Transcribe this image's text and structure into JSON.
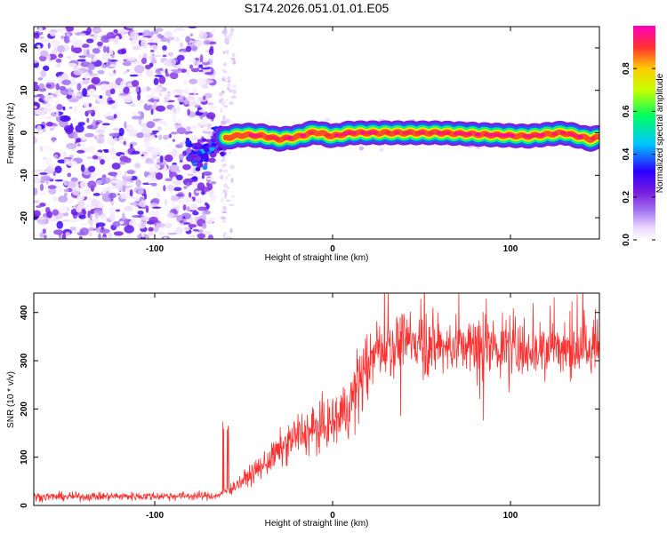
{
  "figure": {
    "title": "S174.2026.051.01.01.E05"
  },
  "chart_data": [
    {
      "type": "heatmap",
      "name": "spectrogram",
      "xlabel": "Height of straight line (km)",
      "ylabel": "Frequency (Hz)",
      "xlim": [
        -168,
        150
      ],
      "ylim": [
        -25,
        25
      ],
      "xticks": [
        -100,
        0,
        100
      ],
      "yticks": [
        -20,
        -10,
        0,
        10,
        20
      ],
      "colorbar": {
        "label": "Normalized spectral amplitude",
        "range": [
          0.0,
          1.0
        ],
        "ticks": [
          0.0,
          0.2,
          0.4,
          0.6,
          0.8
        ],
        "colors": [
          "#ffffff",
          "#e8d4ff",
          "#a070f0",
          "#7a1ee0",
          "#2a00ff",
          "#00c8ff",
          "#00ff60",
          "#c8ff00",
          "#ffcc00",
          "#ff3030",
          "#ff00c0"
        ]
      },
      "noise_region_km": [
        -168,
        -67
      ],
      "onset_km": -80,
      "ridge": {
        "description": "carrier signal near 0 Hz",
        "points": [
          {
            "x": -78,
            "y": -4.5
          },
          {
            "x": -72,
            "y": -5.0
          },
          {
            "x": -66,
            "y": -2.0
          },
          {
            "x": -58,
            "y": -1.0
          },
          {
            "x": -50,
            "y": -0.5
          },
          {
            "x": -40,
            "y": -0.7
          },
          {
            "x": -30,
            "y": -1.5
          },
          {
            "x": -20,
            "y": -1.0
          },
          {
            "x": -10,
            "y": 0.2
          },
          {
            "x": 0,
            "y": -0.8
          },
          {
            "x": 10,
            "y": 0.0
          },
          {
            "x": 30,
            "y": 0.0
          },
          {
            "x": 60,
            "y": 0.0
          },
          {
            "x": 90,
            "y": -0.5
          },
          {
            "x": 110,
            "y": -0.8
          },
          {
            "x": 130,
            "y": 0.0
          },
          {
            "x": 145,
            "y": -1.5
          },
          {
            "x": 150,
            "y": -1.0
          }
        ]
      }
    },
    {
      "type": "line",
      "name": "snr",
      "xlabel": "Height of straight line (km)",
      "ylabel": "SNR (10 * v/v)",
      "xlim": [
        -168,
        150
      ],
      "ylim": [
        0,
        440
      ],
      "xticks": [
        -100,
        0,
        100
      ],
      "yticks": [
        0,
        100,
        200,
        300,
        400
      ],
      "color": "#ff3030",
      "envelope": {
        "x": [
          -168,
          -65,
          -60,
          -55,
          -40,
          -20,
          0,
          10,
          15,
          20,
          25,
          40,
          60,
          100,
          150
        ],
        "mean": [
          18,
          20,
          30,
          40,
          80,
          145,
          170,
          210,
          260,
          290,
          320,
          340,
          330,
          325,
          325
        ]
      }
    }
  ]
}
